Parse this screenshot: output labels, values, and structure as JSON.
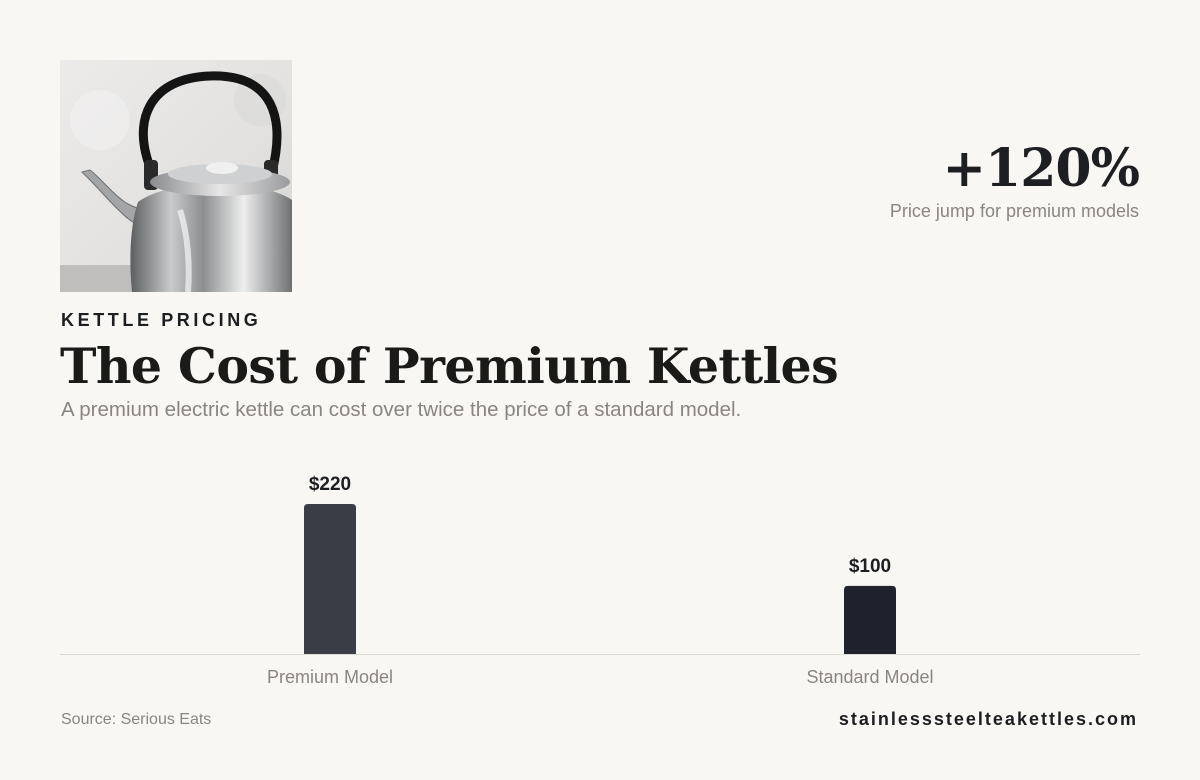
{
  "header": {
    "eyebrow": "KETTLE PRICING",
    "title": "The Cost of Premium Kettles",
    "subtitle": "A premium electric kettle can cost over twice the price of a standard model."
  },
  "kpi": {
    "value": "+120%",
    "caption": "Price jump for premium models"
  },
  "footer": {
    "source": "Source: Serious Eats",
    "site": "stainlesssteelteakettles.com"
  },
  "chart_data": {
    "type": "bar",
    "title": "",
    "xlabel": "",
    "ylabel": "",
    "categories": [
      "Premium Model",
      "Standard Model"
    ],
    "values": [
      220,
      100
    ],
    "value_labels": [
      "$220",
      "$100"
    ],
    "ylim": [
      0,
      220
    ],
    "grid": false,
    "legend": "none",
    "colors": [
      "#3b3d46",
      "#1f222d"
    ]
  }
}
